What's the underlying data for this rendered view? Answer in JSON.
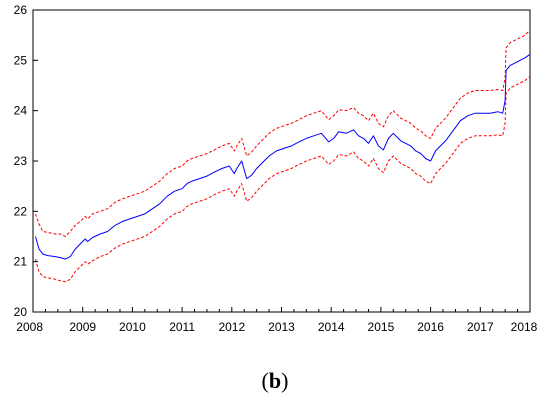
{
  "caption": {
    "open": "(",
    "letter": "b",
    "close": ")"
  },
  "chart_data": {
    "type": "line",
    "title": "",
    "xlabel": "",
    "ylabel": "",
    "xlim": [
      2008,
      2018
    ],
    "ylim": [
      20,
      26
    ],
    "xticks": [
      "2008",
      "2009",
      "2010",
      "2011",
      "2012",
      "2013",
      "2014",
      "2015",
      "2016",
      "2017",
      "2018"
    ],
    "yticks": [
      "20",
      "21",
      "22",
      "23",
      "24",
      "25",
      "26"
    ],
    "grid": false,
    "legend": "none",
    "series": [
      {
        "color": "#0000ff",
        "style": "solid",
        "x": [
          2008.05,
          2008.12,
          2008.2,
          2008.3,
          2008.45,
          2008.55,
          2008.65,
          2008.75,
          2008.85,
          2008.95,
          2009.05,
          2009.1,
          2009.2,
          2009.35,
          2009.5,
          2009.65,
          2009.8,
          2009.95,
          2010.1,
          2010.25,
          2010.4,
          2010.55,
          2010.7,
          2010.85,
          2011.0,
          2011.1,
          2011.2,
          2011.35,
          2011.5,
          2011.65,
          2011.8,
          2011.95,
          2012.05,
          2012.1,
          2012.2,
          2012.3,
          2012.4,
          2012.5,
          2012.6,
          2012.75,
          2012.9,
          2013.05,
          2013.2,
          2013.35,
          2013.5,
          2013.65,
          2013.8,
          2013.95,
          2014.05,
          2014.15,
          2014.3,
          2014.45,
          2014.55,
          2014.65,
          2014.75,
          2014.85,
          2014.95,
          2015.05,
          2015.15,
          2015.25,
          2015.4,
          2015.5,
          2015.6,
          2015.7,
          2015.8,
          2015.9,
          2016.0,
          2016.1,
          2016.2,
          2016.3,
          2016.45,
          2016.6,
          2016.75,
          2016.9,
          2017.0,
          2017.2,
          2017.35,
          2017.45,
          2017.5,
          2017.52,
          2017.6,
          2017.7,
          2017.8,
          2017.9,
          2018.0
        ],
        "y": [
          21.5,
          21.25,
          21.15,
          21.12,
          21.1,
          21.08,
          21.05,
          21.1,
          21.25,
          21.35,
          21.45,
          21.4,
          21.48,
          21.55,
          21.6,
          21.72,
          21.8,
          21.85,
          21.9,
          21.95,
          22.05,
          22.15,
          22.3,
          22.4,
          22.45,
          22.55,
          22.6,
          22.65,
          22.7,
          22.78,
          22.85,
          22.9,
          22.75,
          22.85,
          23.0,
          22.65,
          22.72,
          22.85,
          22.95,
          23.1,
          23.2,
          23.25,
          23.3,
          23.38,
          23.45,
          23.5,
          23.55,
          23.38,
          23.45,
          23.58,
          23.55,
          23.62,
          23.5,
          23.45,
          23.35,
          23.5,
          23.3,
          23.22,
          23.45,
          23.55,
          23.4,
          23.35,
          23.3,
          23.2,
          23.15,
          23.05,
          23.0,
          23.2,
          23.3,
          23.4,
          23.6,
          23.8,
          23.9,
          23.95,
          23.95,
          23.95,
          23.98,
          23.95,
          24.2,
          24.8,
          24.9,
          24.95,
          25.0,
          25.05,
          25.12
        ]
      },
      {
        "color": "#ff0000",
        "style": "dashed",
        "x": [
          2008.05,
          2008.12,
          2008.2,
          2008.3,
          2008.45,
          2008.55,
          2008.65,
          2008.75,
          2008.85,
          2008.95,
          2009.05,
          2009.1,
          2009.2,
          2009.35,
          2009.5,
          2009.65,
          2009.8,
          2009.95,
          2010.1,
          2010.25,
          2010.4,
          2010.55,
          2010.7,
          2010.85,
          2011.0,
          2011.1,
          2011.2,
          2011.35,
          2011.5,
          2011.65,
          2011.8,
          2011.95,
          2012.05,
          2012.1,
          2012.2,
          2012.3,
          2012.4,
          2012.5,
          2012.6,
          2012.75,
          2012.9,
          2013.05,
          2013.2,
          2013.35,
          2013.5,
          2013.65,
          2013.8,
          2013.95,
          2014.05,
          2014.15,
          2014.3,
          2014.45,
          2014.55,
          2014.65,
          2014.75,
          2014.85,
          2014.95,
          2015.05,
          2015.15,
          2015.25,
          2015.4,
          2015.5,
          2015.6,
          2015.7,
          2015.8,
          2015.9,
          2016.0,
          2016.1,
          2016.2,
          2016.3,
          2016.45,
          2016.6,
          2016.75,
          2016.9,
          2017.0,
          2017.2,
          2017.35,
          2017.45,
          2017.5,
          2017.52,
          2017.6,
          2017.7,
          2017.8,
          2017.9,
          2018.0
        ],
        "y": [
          21.95,
          21.75,
          21.6,
          21.58,
          21.55,
          21.55,
          21.5,
          21.6,
          21.72,
          21.8,
          21.9,
          21.85,
          21.95,
          22.0,
          22.05,
          22.18,
          22.25,
          22.3,
          22.35,
          22.4,
          22.5,
          22.6,
          22.75,
          22.85,
          22.9,
          23.0,
          23.05,
          23.1,
          23.15,
          23.22,
          23.3,
          23.35,
          23.2,
          23.3,
          23.45,
          23.1,
          23.18,
          23.3,
          23.4,
          23.55,
          23.65,
          23.7,
          23.75,
          23.82,
          23.9,
          23.95,
          24.0,
          23.82,
          23.9,
          24.02,
          24.0,
          24.06,
          23.95,
          23.9,
          23.8,
          23.95,
          23.75,
          23.68,
          23.9,
          24.0,
          23.85,
          23.8,
          23.75,
          23.65,
          23.6,
          23.5,
          23.45,
          23.65,
          23.75,
          23.85,
          24.05,
          24.25,
          24.35,
          24.4,
          24.4,
          24.4,
          24.42,
          24.4,
          24.65,
          25.25,
          25.35,
          25.4,
          25.45,
          25.5,
          25.6
        ]
      },
      {
        "color": "#ff0000",
        "style": "dashed",
        "x": [
          2008.05,
          2008.12,
          2008.2,
          2008.3,
          2008.45,
          2008.55,
          2008.65,
          2008.75,
          2008.85,
          2008.95,
          2009.05,
          2009.1,
          2009.2,
          2009.35,
          2009.5,
          2009.65,
          2009.8,
          2009.95,
          2010.1,
          2010.25,
          2010.4,
          2010.55,
          2010.7,
          2010.85,
          2011.0,
          2011.1,
          2011.2,
          2011.35,
          2011.5,
          2011.65,
          2011.8,
          2011.95,
          2012.05,
          2012.1,
          2012.2,
          2012.3,
          2012.4,
          2012.5,
          2012.6,
          2012.75,
          2012.9,
          2013.05,
          2013.2,
          2013.35,
          2013.5,
          2013.65,
          2013.8,
          2013.95,
          2014.05,
          2014.15,
          2014.3,
          2014.45,
          2014.55,
          2014.65,
          2014.75,
          2014.85,
          2014.95,
          2015.05,
          2015.15,
          2015.25,
          2015.4,
          2015.5,
          2015.6,
          2015.7,
          2015.8,
          2015.9,
          2016.0,
          2016.1,
          2016.2,
          2016.3,
          2016.45,
          2016.6,
          2016.75,
          2016.9,
          2017.0,
          2017.2,
          2017.35,
          2017.45,
          2017.5,
          2017.52,
          2017.6,
          2017.7,
          2017.8,
          2017.9,
          2018.0
        ],
        "y": [
          21.05,
          20.8,
          20.7,
          20.68,
          20.65,
          20.62,
          20.6,
          20.65,
          20.8,
          20.9,
          21.0,
          20.95,
          21.02,
          21.1,
          21.15,
          21.27,
          21.35,
          21.4,
          21.45,
          21.5,
          21.6,
          21.7,
          21.85,
          21.95,
          22.0,
          22.1,
          22.15,
          22.2,
          22.25,
          22.33,
          22.4,
          22.45,
          22.3,
          22.4,
          22.55,
          22.2,
          22.27,
          22.4,
          22.5,
          22.65,
          22.75,
          22.8,
          22.85,
          22.93,
          23.0,
          23.05,
          23.1,
          22.93,
          23.0,
          23.13,
          23.1,
          23.18,
          23.05,
          23.0,
          22.9,
          23.05,
          22.85,
          22.77,
          23.0,
          23.1,
          22.95,
          22.9,
          22.85,
          22.75,
          22.7,
          22.6,
          22.55,
          22.75,
          22.85,
          22.95,
          23.15,
          23.35,
          23.45,
          23.5,
          23.5,
          23.5,
          23.52,
          23.5,
          23.75,
          24.35,
          24.45,
          24.5,
          24.55,
          24.6,
          24.68
        ]
      }
    ]
  }
}
